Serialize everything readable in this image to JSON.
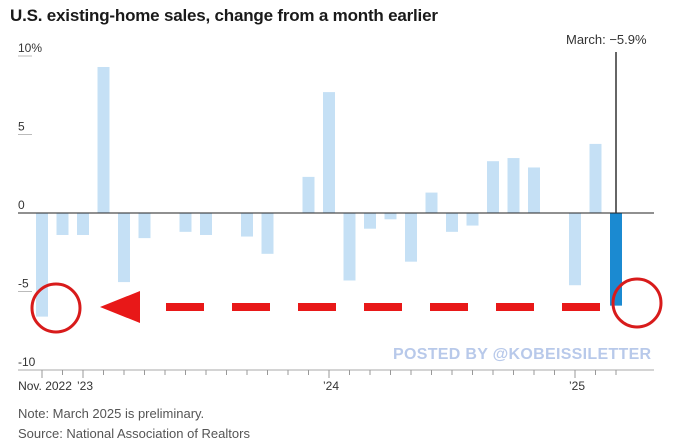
{
  "chart_data": {
    "type": "bar",
    "title": "U.S. existing-home sales, change from a month earlier",
    "callout": "March: −5.9%",
    "y_tick_labels": [
      "10%",
      "5",
      "0",
      "-5",
      "-10"
    ],
    "y_ticks": [
      10,
      5,
      0,
      -5,
      -10
    ],
    "ylim": [
      -10,
      10
    ],
    "x_tick_labels": [
      "Nov. 2022",
      "’23",
      "’24",
      "’25"
    ],
    "categories": [
      "Nov 2022",
      "Dec 2022",
      "Jan 2023",
      "Feb 2023",
      "Mar 2023",
      "Apr 2023",
      "May 2023",
      "Jun 2023",
      "Jul 2023",
      "Aug 2023",
      "Sep 2023",
      "Oct 2023",
      "Nov 2023",
      "Dec 2023",
      "Jan 2024",
      "Feb 2024",
      "Mar 2024",
      "Apr 2024",
      "May 2024",
      "Jun 2024",
      "Jul 2024",
      "Aug 2024",
      "Sep 2024",
      "Oct 2024",
      "Nov 2024",
      "Dec 2024",
      "Jan 2025",
      "Feb 2025",
      "Mar 2025"
    ],
    "values": [
      -6.6,
      -1.4,
      -1.4,
      9.3,
      -4.4,
      -1.6,
      0.0,
      -1.2,
      -1.4,
      0.0,
      -1.5,
      -2.6,
      0.0,
      2.3,
      7.7,
      -4.3,
      -1.0,
      -0.4,
      -3.1,
      1.3,
      -1.2,
      -0.8,
      3.3,
      3.5,
      2.9,
      0.0,
      -4.6,
      4.4,
      -5.9
    ],
    "highlight_color": "#1b8ad1",
    "bar_color": "#c5e0f5",
    "grid": false
  },
  "watermark": "POSTED BY @KOBEISSILETTER",
  "notes": {
    "note": "Note: March 2025 is preliminary.",
    "source": "Source: National Association of Realtors"
  },
  "annotation": {
    "arrow_color": "#e81818",
    "circle_color": "#d81b1b"
  }
}
